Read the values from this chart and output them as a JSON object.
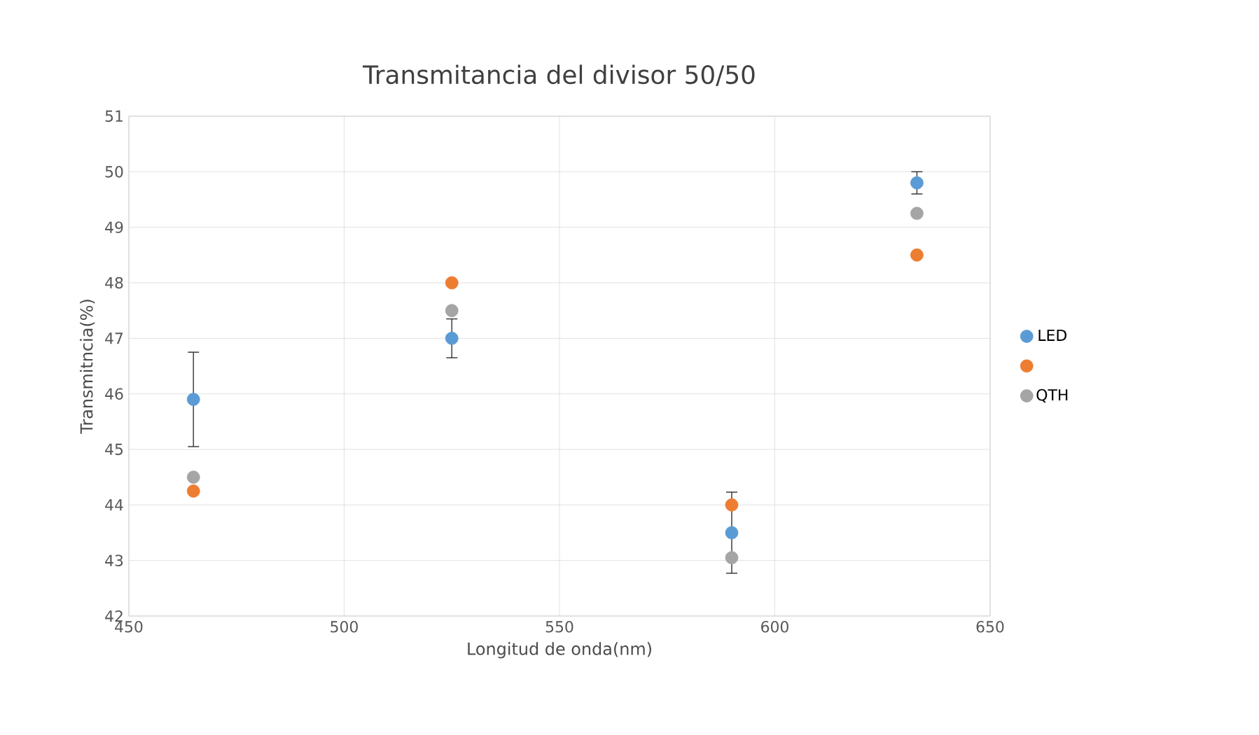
{
  "chart_data": {
    "type": "scatter",
    "title": "Transmitancia del divisor 50/50",
    "xlabel": "Longitud de onda(nm)",
    "ylabel": "Transmitncia(%)",
    "xlim": [
      450,
      650
    ],
    "xticks": [
      450,
      500,
      550,
      600,
      650
    ],
    "ylim": [
      42,
      51
    ],
    "yticks": [
      42,
      43,
      44,
      45,
      46,
      47,
      48,
      49,
      50,
      51
    ],
    "grid": true,
    "legend": "right",
    "series": [
      {
        "name": "LED",
        "color": "#5b9bd5",
        "x": [
          465,
          525,
          590,
          633
        ],
        "values": [
          45.9,
          47.0,
          43.5,
          49.8
        ],
        "errors": [
          0.85,
          0.35,
          0.73,
          0.2
        ]
      },
      {
        "color": "#ed7d31",
        "x": [
          465,
          525,
          590,
          633
        ],
        "values": [
          44.25,
          48.0,
          44.0,
          48.5
        ]
      },
      {
        "name": "QTH",
        "color": "#a5a5a5",
        "x": [
          465,
          525,
          590,
          633
        ],
        "values": [
          44.5,
          47.5,
          43.05,
          49.25
        ]
      }
    ]
  }
}
